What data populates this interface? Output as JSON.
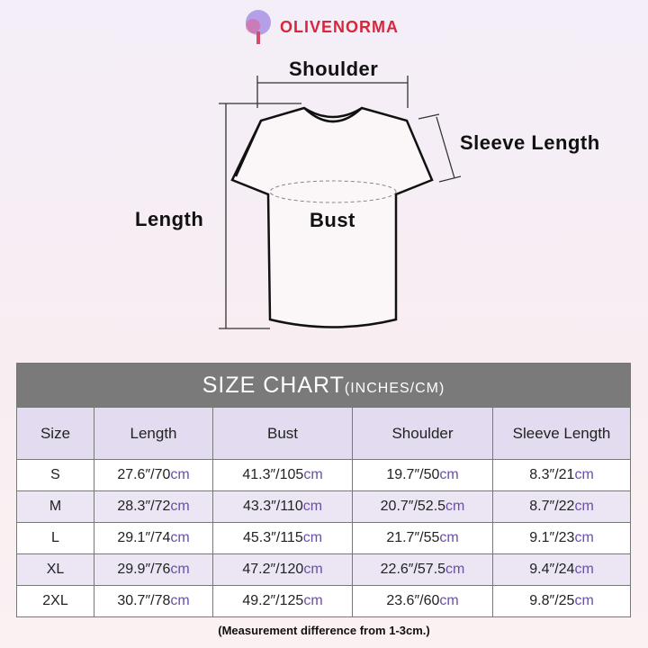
{
  "brand": "OLIVENORMA",
  "diagram": {
    "shoulder": "Shoulder",
    "sleeve_length": "Sleeve Length",
    "length": "Length",
    "bust": "Bust"
  },
  "table": {
    "title": "SIZE CHART",
    "title_units": "(INCHES/CM)",
    "headers": [
      "Size",
      "Length",
      "Bust",
      "Shoulder",
      "Sleeve Length"
    ],
    "rows": [
      {
        "size": "S",
        "cells": [
          [
            "27.6″/70",
            "cm"
          ],
          [
            "41.3″/105",
            "cm"
          ],
          [
            "19.7″/50",
            "cm"
          ],
          [
            "8.3″/21",
            "cm"
          ]
        ]
      },
      {
        "size": "M",
        "cells": [
          [
            "28.3″/72",
            "cm"
          ],
          [
            "43.3″/110",
            "cm"
          ],
          [
            "20.7″/52.5",
            "cm"
          ],
          [
            "8.7″/22",
            "cm"
          ]
        ]
      },
      {
        "size": "L",
        "cells": [
          [
            "29.1″/74",
            "cm"
          ],
          [
            "45.3″/115",
            "cm"
          ],
          [
            "21.7″/55",
            "cm"
          ],
          [
            "9.1″/23",
            "cm"
          ]
        ]
      },
      {
        "size": "XL",
        "cells": [
          [
            "29.9″/76",
            "cm"
          ],
          [
            "47.2″/120",
            "cm"
          ],
          [
            "22.6″/57.5",
            "cm"
          ],
          [
            "9.4″/24",
            "cm"
          ]
        ]
      },
      {
        "size": "2XL",
        "cells": [
          [
            "30.7″/78",
            "cm"
          ],
          [
            "49.2″/125",
            "cm"
          ],
          [
            "23.6″/60",
            "cm"
          ],
          [
            "9.8″/25",
            "cm"
          ]
        ]
      }
    ]
  },
  "note": "(Measurement difference from 1-3cm.)",
  "colors": {
    "title_bar": "#7a7a7a",
    "header": "#e3dbef",
    "alt_row": "#ece6f4",
    "cm_text": "#6a4fa8",
    "brand": "#d8263a"
  }
}
